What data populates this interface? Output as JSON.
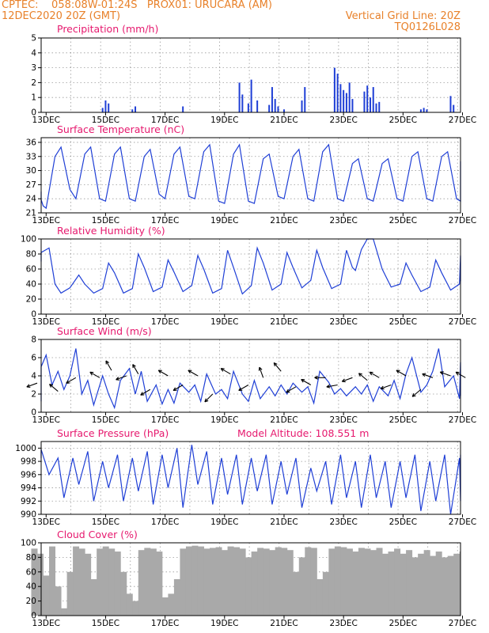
{
  "header": {
    "line1_left": "CPTEC:    058:08W-01:24S   PROX01: URUCARA (AM)",
    "line2_left": "12DEC2020 20Z (GMT)",
    "line2_right": "Vertical Grid Line: 20Z",
    "line3_right": "TQ0126L028"
  },
  "colors": {
    "header": "#e8812a",
    "title": "#e6196e",
    "series": "#1f3fd6",
    "cloud": "#a9a9a9",
    "grid": "#9a9a9a"
  },
  "x_ticks": [
    "13DEC",
    "15DEC",
    "17DEC",
    "19DEC",
    "21DEC",
    "23DEC",
    "25DEC",
    "27DEC"
  ],
  "chart_data": [
    {
      "type": "bar",
      "title": "Precipitation (mm/h)",
      "x_label_format": "day DEC 2020, hourly",
      "ylim": [
        0,
        5
      ],
      "yticks": [
        0,
        1,
        2,
        3,
        4,
        5
      ],
      "x": [
        14.4,
        14.5,
        14.6,
        15.4,
        15.5,
        17.1,
        19.0,
        19.1,
        19.3,
        19.4,
        19.6,
        20.0,
        20.1,
        20.2,
        20.3,
        20.5,
        21.1,
        21.2,
        22.2,
        22.3,
        22.4,
        22.5,
        22.6,
        22.7,
        22.8,
        23.2,
        23.3,
        23.4,
        23.5,
        23.6,
        23.7,
        25.1,
        25.2,
        25.3,
        26.1,
        26.2
      ],
      "values": [
        0.3,
        0.8,
        0.6,
        0.2,
        0.4,
        0.4,
        2.0,
        1.2,
        0.6,
        2.2,
        0.8,
        0.5,
        1.7,
        0.9,
        0.4,
        0.2,
        0.8,
        1.7,
        3.0,
        2.6,
        1.9,
        1.5,
        1.3,
        2.0,
        0.9,
        1.4,
        1.8,
        1.0,
        1.7,
        0.6,
        0.7,
        0.2,
        0.3,
        0.2,
        1.1,
        0.5
      ]
    },
    {
      "type": "line",
      "title": "Surface Temperature (nC)",
      "ylim": [
        21,
        37
      ],
      "yticks": [
        21,
        24,
        27,
        30,
        33,
        36
      ],
      "x": [
        12.0,
        12.2,
        12.4,
        12.5,
        12.8,
        13.0,
        13.3,
        13.5,
        13.8,
        14.0,
        14.3,
        14.5,
        14.8,
        15.0,
        15.3,
        15.5,
        15.8,
        16.0,
        16.3,
        16.5,
        16.8,
        17.0,
        17.3,
        17.5,
        17.8,
        18.0,
        18.3,
        18.5,
        18.8,
        19.0,
        19.3,
        19.5,
        19.8,
        20.0,
        20.3,
        20.5,
        20.8,
        21.0,
        21.3,
        21.5,
        21.8,
        22.0,
        22.3,
        22.5,
        22.8,
        23.0,
        23.3,
        23.5,
        23.8,
        24.0,
        24.3,
        24.5,
        24.8,
        25.0,
        25.3,
        25.5,
        25.8,
        26.0,
        26.3,
        26.5,
        26.8,
        27.0
      ],
      "values": [
        25.5,
        23.8,
        22.5,
        22.0,
        33.0,
        35.0,
        26.0,
        24.0,
        33.5,
        35.0,
        24.0,
        23.5,
        33.5,
        35.0,
        24.0,
        23.5,
        33.0,
        34.5,
        25.0,
        24.0,
        33.5,
        35.0,
        24.5,
        24.0,
        34.0,
        35.5,
        23.5,
        23.0,
        33.5,
        35.5,
        23.5,
        23.0,
        32.5,
        33.5,
        24.5,
        24.0,
        33.0,
        34.5,
        24.0,
        23.5,
        34.0,
        35.5,
        24.0,
        23.5,
        31.5,
        32.5,
        24.0,
        23.5,
        31.5,
        32.5,
        24.0,
        23.5,
        33.0,
        34.0,
        24.0,
        23.5,
        33.0,
        34.0,
        24.0,
        23.5,
        32.0,
        32.0
      ]
    },
    {
      "type": "line",
      "title": "Relative Humidity (%)",
      "ylim": [
        0,
        100
      ],
      "yticks": [
        0,
        20,
        40,
        60,
        80,
        100
      ],
      "x": [
        12.0,
        12.3,
        12.6,
        12.8,
        13.0,
        13.3,
        13.6,
        13.8,
        14.1,
        14.4,
        14.6,
        14.8,
        15.1,
        15.4,
        15.6,
        15.8,
        16.1,
        16.4,
        16.6,
        16.8,
        17.1,
        17.4,
        17.6,
        17.8,
        18.1,
        18.4,
        18.6,
        18.8,
        19.1,
        19.4,
        19.6,
        19.8,
        20.1,
        20.4,
        20.6,
        20.8,
        21.1,
        21.4,
        21.6,
        21.8,
        22.1,
        22.4,
        22.6,
        22.8,
        22.9,
        23.1,
        23.3,
        23.5,
        23.8,
        24.1,
        24.4,
        24.6,
        24.8,
        25.1,
        25.4,
        25.6,
        25.8,
        26.1,
        26.4,
        26.6,
        26.8,
        27.0
      ],
      "values": [
        70,
        82,
        88,
        40,
        28,
        35,
        52,
        40,
        28,
        34,
        68,
        55,
        28,
        34,
        80,
        62,
        30,
        36,
        72,
        56,
        30,
        38,
        78,
        60,
        28,
        34,
        85,
        62,
        27,
        38,
        88,
        68,
        32,
        40,
        82,
        62,
        35,
        45,
        85,
        62,
        34,
        40,
        85,
        62,
        58,
        86,
        100,
        100,
        60,
        36,
        40,
        68,
        52,
        30,
        36,
        72,
        55,
        32,
        40,
        78,
        56,
        44
      ]
    },
    {
      "type": "line",
      "title": "Surface Wind (m/s)",
      "ylim": [
        0,
        8
      ],
      "yticks": [
        0,
        2,
        4,
        6,
        8
      ],
      "x": [
        12.0,
        12.3,
        12.5,
        12.7,
        12.9,
        13.1,
        13.3,
        13.5,
        13.7,
        13.9,
        14.1,
        14.4,
        14.6,
        14.8,
        15.0,
        15.3,
        15.5,
        15.7,
        15.9,
        16.2,
        16.4,
        16.6,
        16.8,
        17.0,
        17.3,
        17.5,
        17.7,
        17.9,
        18.2,
        18.4,
        18.6,
        18.8,
        19.1,
        19.3,
        19.5,
        19.7,
        20.0,
        20.2,
        20.4,
        20.6,
        20.8,
        21.1,
        21.3,
        21.5,
        21.7,
        22.0,
        22.2,
        22.4,
        22.6,
        22.9,
        23.1,
        23.3,
        23.5,
        23.7,
        24.0,
        24.2,
        24.4,
        24.6,
        24.8,
        25.1,
        25.3,
        25.5,
        25.7,
        25.9,
        26.2,
        26.4,
        26.6,
        26.8,
        27.0
      ],
      "values": [
        1.2,
        5.0,
        6.3,
        3.0,
        4.5,
        2.5,
        4.0,
        7.0,
        2.0,
        3.5,
        0.8,
        4.0,
        2.0,
        0.5,
        3.5,
        4.8,
        2.0,
        4.5,
        1.2,
        3.0,
        0.9,
        2.5,
        1.0,
        3.2,
        2.2,
        3.0,
        1.2,
        4.2,
        2.0,
        2.5,
        1.5,
        4.5,
        2.0,
        1.2,
        3.5,
        1.5,
        2.8,
        1.8,
        3.0,
        2.0,
        3.2,
        2.2,
        2.8,
        1.0,
        4.5,
        3.3,
        2.0,
        2.6,
        1.8,
        2.8,
        2.0,
        3.0,
        1.2,
        2.8,
        1.8,
        3.5,
        1.5,
        4.2,
        6.0,
        2.2,
        3.0,
        4.5,
        7.0,
        2.8,
        4.0,
        1.5,
        5.5,
        3.0,
        1.8
      ]
    },
    {
      "type": "line",
      "title": "Surface Pressure (hPa)",
      "subtitle": "Model Altitude: 108.551  m",
      "ylim": [
        990,
        1001
      ],
      "yticks": [
        990,
        992,
        994,
        996,
        998,
        1000
      ],
      "x": [
        12.0,
        12.3,
        12.6,
        12.9,
        13.1,
        13.4,
        13.6,
        13.9,
        14.1,
        14.4,
        14.6,
        14.9,
        15.1,
        15.4,
        15.6,
        15.9,
        16.1,
        16.4,
        16.6,
        16.9,
        17.1,
        17.4,
        17.6,
        17.9,
        18.1,
        18.4,
        18.6,
        18.9,
        19.1,
        19.4,
        19.6,
        19.9,
        20.1,
        20.4,
        20.6,
        20.9,
        21.1,
        21.4,
        21.6,
        21.9,
        22.1,
        22.4,
        22.6,
        22.9,
        23.1,
        23.4,
        23.6,
        23.9,
        24.1,
        24.4,
        24.6,
        24.9,
        25.1,
        25.4,
        25.6,
        25.9,
        26.1,
        26.4,
        26.6,
        26.9,
        27.0
      ],
      "values": [
        998.5,
        999.8,
        996.0,
        998.5,
        992.5,
        998.5,
        994.5,
        999.5,
        992.0,
        998.0,
        994.0,
        999.0,
        992.0,
        998.5,
        993.5,
        999.5,
        991.5,
        999.0,
        994.0,
        1000.0,
        991.0,
        1000.5,
        994.5,
        999.5,
        991.5,
        998.5,
        993.0,
        999.0,
        991.5,
        998.5,
        993.5,
        999.0,
        991.5,
        998.0,
        993.0,
        998.5,
        991.0,
        997.0,
        993.5,
        998.0,
        991.5,
        999.0,
        992.5,
        998.0,
        991.0,
        999.0,
        992.5,
        998.0,
        991.0,
        998.0,
        992.5,
        999.0,
        990.5,
        998.0,
        992.0,
        999.0,
        990.0,
        998.5,
        992.0,
        999.0,
        993.0
      ]
    },
    {
      "type": "bar",
      "title": "Cloud Cover (%)",
      "ylim": [
        0,
        100
      ],
      "yticks": [
        0,
        20,
        40,
        60,
        80,
        100
      ],
      "x": [
        12.0,
        12.2,
        12.4,
        12.6,
        12.8,
        13.0,
        13.2,
        13.4,
        13.6,
        13.8,
        14.0,
        14.2,
        14.4,
        14.6,
        14.8,
        15.0,
        15.2,
        15.4,
        15.6,
        15.8,
        16.0,
        16.2,
        16.4,
        16.6,
        16.8,
        17.0,
        17.2,
        17.4,
        17.6,
        17.8,
        18.0,
        18.2,
        18.4,
        18.6,
        18.8,
        19.0,
        19.2,
        19.4,
        19.6,
        19.8,
        20.0,
        20.2,
        20.4,
        20.6,
        20.8,
        21.0,
        21.2,
        21.4,
        21.6,
        21.8,
        22.0,
        22.2,
        22.4,
        22.6,
        22.8,
        23.0,
        23.2,
        23.4,
        23.6,
        23.8,
        24.0,
        24.2,
        24.4,
        24.6,
        24.8,
        25.0,
        25.2,
        25.4,
        25.6,
        25.8,
        26.0,
        26.2,
        26.4,
        26.6,
        26.8
      ],
      "values": [
        92,
        85,
        55,
        95,
        40,
        10,
        60,
        95,
        92,
        85,
        50,
        92,
        95,
        92,
        88,
        60,
        30,
        20,
        90,
        93,
        92,
        88,
        25,
        30,
        50,
        92,
        95,
        96,
        95,
        92,
        93,
        94,
        90,
        95,
        94,
        92,
        80,
        88,
        93,
        92,
        90,
        94,
        93,
        90,
        60,
        80,
        94,
        93,
        50,
        60,
        92,
        95,
        94,
        92,
        88,
        93,
        92,
        90,
        93,
        85,
        88,
        92,
        85,
        90,
        80,
        85,
        90,
        82,
        88,
        80,
        82,
        85,
        88,
        90,
        86
      ]
    }
  ],
  "wind_vectors": {
    "x": [
      12.2,
      12.9,
      13.5,
      14.3,
      14.7,
      15.2,
      15.6,
      16.0,
      16.6,
      17.1,
      17.6,
      18.1,
      18.7,
      19.3,
      19.8,
      20.4,
      20.9,
      21.4,
      21.9,
      22.3,
      22.8,
      23.3,
      23.7,
      24.1,
      24.6,
      25.1,
      25.5,
      26.1,
      26.6
    ],
    "values": [
      3.2,
      2.3,
      3.8,
      3.8,
      4.6,
      4.0,
      4.2,
      2.5,
      4.0,
      3.0,
      4.0,
      2.0,
      4.2,
      3.0,
      3.8,
      4.5,
      2.8,
      3.0,
      3.8,
      3.0,
      3.8,
      3.5,
      3.8,
      3.0,
      4.0,
      2.5,
      3.8,
      4.0,
      3.8
    ],
    "angles": [
      200,
      140,
      210,
      150,
      120,
      200,
      120,
      210,
      150,
      210,
      150,
      225,
      150,
      210,
      110,
      130,
      210,
      150,
      180,
      190,
      200,
      140,
      150,
      200,
      150,
      220,
      160,
      160,
      150
    ]
  }
}
